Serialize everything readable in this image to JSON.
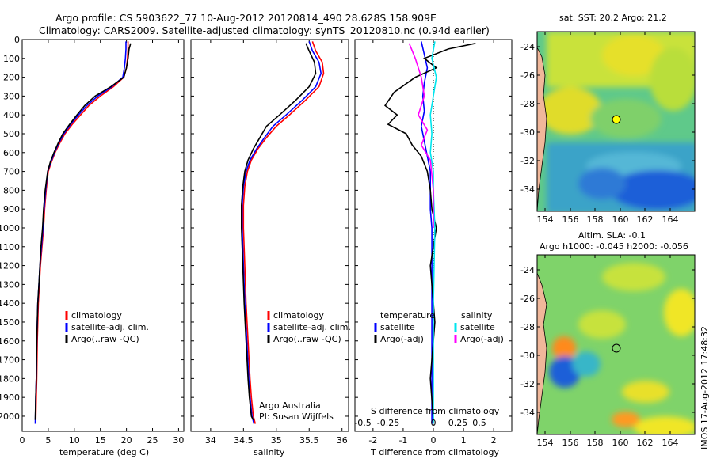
{
  "header": {
    "line1": "Argo profile: CS 5903622_77 10-Aug-2012 20120814_490 28.628S 158.909E",
    "line2": "Climatology: CARS2009. Satellite-adjusted climatology: synTS_20120810.nc (0.94d earlier)"
  },
  "colors": {
    "climatology": "#ff0000",
    "satellite": "#0000ff",
    "argo": "#000000",
    "sat_salinity": "#00e5ee",
    "argo_adj_salinity": "#ff00ff"
  },
  "chart_data": [
    {
      "id": "temperature",
      "type": "line",
      "xlabel": "temperature (deg C)",
      "xlim": [
        0,
        31
      ],
      "xticks": [
        0,
        5,
        10,
        15,
        20,
        25,
        30
      ],
      "ylim": [
        2080,
        0
      ],
      "yticks": [
        0,
        100,
        200,
        300,
        400,
        500,
        600,
        700,
        800,
        900,
        1000,
        1100,
        1200,
        1300,
        1400,
        1500,
        1600,
        1700,
        1800,
        1900,
        2000
      ],
      "legend": [
        "climatology",
        "satellite-adj. clim.",
        "Argo(..raw -QC)"
      ],
      "series": [
        {
          "name": "climatology",
          "color": "#ff0000",
          "x": [
            20.3,
            20.3,
            20.2,
            20.0,
            19.5,
            17.5,
            15.0,
            12.8,
            11.2,
            9.6,
            8.2,
            7.2,
            6.3,
            5.6,
            5.0,
            4.6,
            4.3,
            4.1,
            3.8,
            3.5,
            3.3,
            3.1,
            2.9,
            2.8,
            2.7,
            2.6
          ],
          "y": [
            10,
            50,
            100,
            150,
            200,
            250,
            300,
            350,
            400,
            450,
            500,
            550,
            600,
            650,
            700,
            800,
            900,
            1000,
            1100,
            1200,
            1300,
            1400,
            1600,
            1800,
            1900,
            2040
          ]
        },
        {
          "name": "satellite-adj. clim.",
          "color": "#0000ff",
          "x": [
            19.9,
            19.9,
            19.8,
            19.6,
            19.3,
            17.2,
            14.5,
            12.4,
            10.8,
            9.3,
            8.0,
            7.0,
            6.2,
            5.5,
            4.9,
            4.5,
            4.2,
            4.0,
            3.7,
            3.4,
            3.2,
            3.0,
            2.8,
            2.7,
            2.6,
            2.5
          ],
          "y": [
            10,
            50,
            100,
            150,
            200,
            250,
            300,
            350,
            400,
            450,
            500,
            550,
            600,
            650,
            700,
            800,
            900,
            1000,
            1100,
            1200,
            1300,
            1400,
            1600,
            1800,
            1900,
            2040
          ]
        },
        {
          "name": "Argo(..raw -QC)",
          "color": "#000000",
          "x": [
            20.8,
            20.5,
            20.3,
            20.0,
            19.5,
            17.0,
            14.0,
            12.0,
            10.5,
            9.1,
            7.8,
            6.9,
            6.1,
            5.4,
            4.9,
            4.4,
            4.1,
            3.9,
            3.6,
            3.4,
            3.2,
            3.0,
            2.8,
            2.7,
            2.6,
            2.5
          ],
          "y": [
            20,
            50,
            100,
            150,
            200,
            250,
            300,
            350,
            400,
            450,
            500,
            550,
            600,
            650,
            700,
            800,
            900,
            1000,
            1100,
            1200,
            1300,
            1400,
            1600,
            1800,
            1900,
            2020
          ]
        }
      ]
    },
    {
      "id": "salinity",
      "type": "line",
      "xlabel": "salinity",
      "xlim": [
        33.7,
        36.1
      ],
      "xticks": [
        34,
        34.5,
        35,
        35.5,
        36
      ],
      "xtick_labels": [
        "34",
        "34.5",
        "35",
        "35.5",
        "36"
      ],
      "ylim": [
        2080,
        0
      ],
      "legend": [
        "climatology",
        "satellite-adj. clim.",
        "Argo(..raw -QC)"
      ],
      "notes": [
        "Argo Australia",
        "PI: Susan Wijffels"
      ],
      "series": [
        {
          "name": "climatology",
          "color": "#ff0000",
          "x": [
            35.55,
            35.6,
            35.7,
            35.72,
            35.65,
            35.45,
            35.2,
            35.0,
            34.85,
            34.72,
            34.62,
            34.56,
            34.52,
            34.5,
            34.5,
            34.52,
            34.54,
            34.57,
            34.6,
            34.62,
            34.65,
            34.68
          ],
          "y": [
            10,
            60,
            120,
            180,
            250,
            320,
            400,
            460,
            520,
            580,
            640,
            700,
            780,
            880,
            1000,
            1200,
            1400,
            1600,
            1800,
            1900,
            2000,
            2040
          ]
        },
        {
          "name": "satellite-adj. clim.",
          "color": "#0000ff",
          "x": [
            35.5,
            35.55,
            35.65,
            35.68,
            35.6,
            35.4,
            35.15,
            34.95,
            34.82,
            34.7,
            34.6,
            34.54,
            34.5,
            34.48,
            34.48,
            34.5,
            34.52,
            34.55,
            34.58,
            34.6,
            34.63,
            34.66
          ],
          "y": [
            10,
            60,
            120,
            180,
            250,
            320,
            400,
            460,
            520,
            580,
            640,
            700,
            780,
            880,
            1000,
            1200,
            1400,
            1600,
            1800,
            1900,
            2000,
            2040
          ]
        },
        {
          "name": "Argo(..raw -QC)",
          "color": "#000000",
          "x": [
            35.45,
            35.5,
            35.58,
            35.6,
            35.5,
            35.3,
            35.05,
            34.85,
            34.75,
            34.65,
            34.57,
            34.52,
            34.49,
            34.47,
            34.47,
            34.49,
            34.51,
            34.54,
            34.57,
            34.59,
            34.62,
            34.65
          ],
          "y": [
            20,
            60,
            120,
            180,
            250,
            320,
            400,
            460,
            520,
            580,
            640,
            700,
            780,
            880,
            1000,
            1200,
            1400,
            1600,
            1800,
            1900,
            2000,
            2020
          ]
        }
      ]
    },
    {
      "id": "difference",
      "type": "line",
      "xlabel": "T difference from climatology",
      "xlabel_top": "S difference from climatology",
      "xlim": [
        -2.6,
        2.6
      ],
      "xticks_bottom": [
        -2,
        -1,
        0,
        1,
        2
      ],
      "xticks_top": [
        "-0.5",
        "-0.25",
        "0",
        "0.25",
        "0.5"
      ],
      "ylim": [
        2080,
        0
      ],
      "legend_temperature": [
        "temperature",
        "satellite",
        "Argo(-adj)"
      ],
      "legend_salinity": [
        "salinity",
        "satellite",
        "Argo(-adj)"
      ],
      "series": [
        {
          "name": "temperature satellite",
          "color": "#0000ff",
          "x": [
            -0.4,
            -0.3,
            -0.2,
            -0.3,
            -0.35,
            -0.3,
            -0.4,
            -0.3,
            -0.2,
            -0.1,
            -0.1,
            -0.1,
            -0.05,
            -0.05,
            -0.05,
            -0.05,
            -0.05
          ],
          "y": [
            10,
            80,
            150,
            230,
            300,
            380,
            460,
            540,
            620,
            700,
            780,
            900,
            1000,
            1200,
            1500,
            1800,
            2040
          ]
        },
        {
          "name": "temperature Argo(-adj)",
          "color": "#000000",
          "x": [
            1.4,
            0.5,
            -0.3,
            0.1,
            -0.6,
            -1.3,
            -1.6,
            -1.2,
            -1.5,
            -0.9,
            -0.7,
            -0.4,
            -0.2,
            -0.1,
            -0.05,
            0.1,
            -0.1,
            0.05,
            -0.1,
            0.0
          ],
          "y": [
            20,
            50,
            100,
            150,
            200,
            280,
            350,
            400,
            450,
            500,
            560,
            620,
            700,
            800,
            900,
            1000,
            1200,
            1500,
            1800,
            2020
          ]
        },
        {
          "name": "salinity satellite",
          "color": "#00e5ee",
          "x": [
            0.05,
            -0.05,
            0.1,
            0.0,
            -0.1,
            -0.05,
            -0.1,
            0.0,
            0.0,
            0.05,
            0.0,
            0.0,
            0.0
          ],
          "y": [
            10,
            100,
            200,
            300,
            400,
            500,
            600,
            700,
            800,
            1000,
            1400,
            1800,
            2040
          ]
        },
        {
          "name": "salinity Argo(-adj)",
          "color": "#ff00ff",
          "x": [
            -0.8,
            -0.6,
            -0.4,
            -0.3,
            -0.5,
            -0.2,
            -0.4,
            -0.1,
            -0.05,
            0.0,
            0.0
          ],
          "y": [
            20,
            100,
            200,
            300,
            400,
            480,
            560,
            640,
            720,
            800,
            1000
          ]
        }
      ]
    }
  ],
  "maps": {
    "sst": {
      "title": "sat. SST: 20.2 Argo: 21.2",
      "lat_ticks": [
        "-24",
        "-26",
        "-28",
        "-30",
        "-32",
        "-34"
      ],
      "lon_ticks": [
        "154",
        "156",
        "158",
        "160",
        "162",
        "164"
      ]
    },
    "sla": {
      "title1": "Altim. SLA: -0.1",
      "title2": "Argo h1000: -0.045 h2000: -0.056",
      "lat_ticks": [
        "-24",
        "-26",
        "-28",
        "-30",
        "-32",
        "-34"
      ],
      "lon_ticks": [
        "154",
        "156",
        "158",
        "160",
        "162",
        "164"
      ]
    }
  },
  "stamp": "IMOS 17-Aug-2012 17:48:32"
}
